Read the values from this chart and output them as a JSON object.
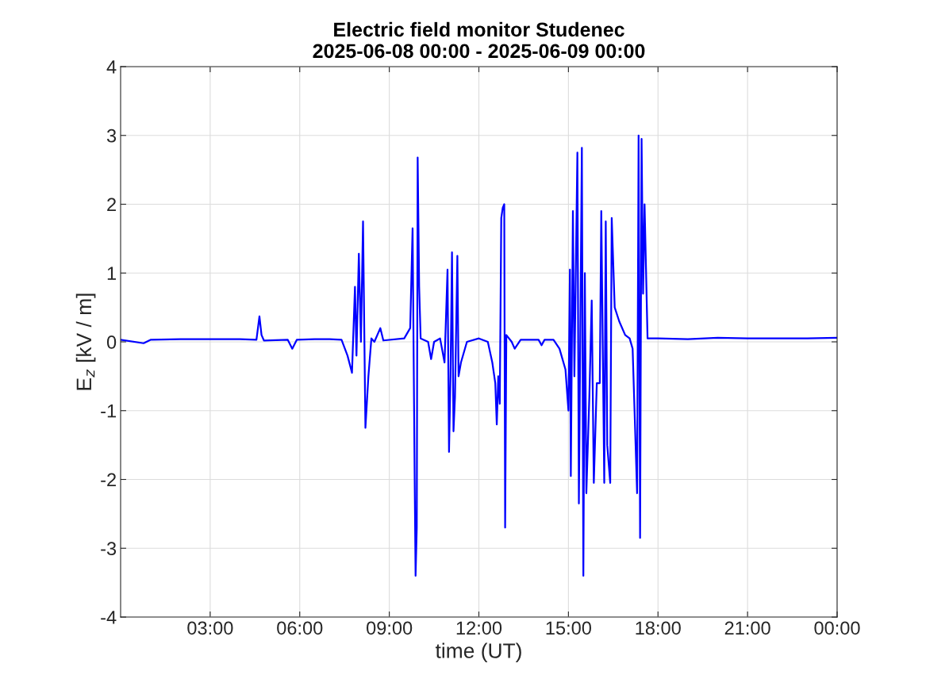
{
  "chart_data": {
    "type": "line",
    "title": "Electric field monitor Studenec\n2025-06-08 00:00 - 2025-06-09 00:00",
    "xlabel": "time (UT)",
    "ylabel": "E$_{z}$ [kV / m]",
    "x": [
      0,
      0.77,
      1.0,
      2.0,
      3.0,
      4.0,
      4.55,
      4.65,
      4.72,
      4.8,
      5.6,
      5.75,
      5.9,
      6.5,
      7.0,
      7.4,
      7.6,
      7.75,
      7.85,
      7.9,
      7.98,
      8.05,
      8.12,
      8.2,
      8.3,
      8.4,
      8.5,
      8.7,
      8.8,
      9.5,
      9.7,
      9.78,
      9.85,
      9.88,
      9.92,
      9.95,
      10.0,
      10.05,
      10.3,
      10.4,
      10.5,
      10.7,
      10.85,
      10.95,
      11.0,
      11.05,
      11.1,
      11.15,
      11.2,
      11.28,
      11.32,
      11.4,
      11.6,
      12.0,
      12.3,
      12.45,
      12.55,
      12.6,
      12.65,
      12.7,
      12.75,
      12.8,
      12.85,
      12.88,
      12.92,
      13.1,
      13.2,
      13.4,
      14.0,
      14.1,
      14.2,
      14.5,
      14.7,
      14.9,
      15.0,
      15.05,
      15.08,
      15.15,
      15.2,
      15.3,
      15.35,
      15.45,
      15.5,
      15.55,
      15.6,
      15.7,
      15.78,
      15.85,
      15.95,
      16.05,
      16.1,
      16.2,
      16.25,
      16.3,
      16.4,
      16.45,
      16.55,
      16.7,
      16.9,
      17.05,
      17.15,
      17.25,
      17.3,
      17.35,
      17.4,
      17.45,
      17.5,
      17.55,
      17.65,
      18.0,
      19.0,
      20.0,
      21.0,
      22.0,
      23.0,
      24.0
    ],
    "series": [
      {
        "color": "#0000ff",
        "values": [
          0.03,
          -0.02,
          0.03,
          0.04,
          0.04,
          0.04,
          0.03,
          0.37,
          0.1,
          0.02,
          0.03,
          -0.1,
          0.03,
          0.04,
          0.04,
          0.03,
          -0.2,
          -0.45,
          0.8,
          -0.2,
          1.28,
          0.0,
          1.75,
          -1.25,
          -0.5,
          0.05,
          0.0,
          0.2,
          0.02,
          0.05,
          0.2,
          1.65,
          -2.0,
          -3.4,
          -2.7,
          2.68,
          0.8,
          0.05,
          0.0,
          -0.25,
          0.0,
          0.05,
          -0.3,
          1.05,
          -1.6,
          -0.5,
          1.3,
          -1.3,
          -0.8,
          1.25,
          -0.5,
          -0.3,
          0.0,
          0.05,
          0.0,
          -0.3,
          -0.6,
          -1.2,
          -0.5,
          -0.9,
          1.8,
          1.95,
          2.0,
          -2.7,
          0.1,
          0.0,
          -0.1,
          0.03,
          0.03,
          -0.05,
          0.03,
          0.03,
          -0.1,
          -0.4,
          -1.0,
          1.05,
          -1.95,
          1.9,
          -0.5,
          2.75,
          -2.35,
          2.82,
          -3.4,
          1.0,
          -2.2,
          -0.8,
          0.6,
          -2.05,
          -0.6,
          -0.6,
          1.9,
          -2.05,
          1.75,
          -1.5,
          -2.05,
          1.8,
          0.5,
          0.3,
          0.1,
          0.05,
          -0.1,
          -1.5,
          -2.2,
          3.0,
          -2.85,
          2.95,
          0.7,
          2.0,
          0.05,
          0.05,
          0.04,
          0.06,
          0.05,
          0.05,
          0.05,
          0.06
        ]
      }
    ],
    "xlim": [
      0,
      24
    ],
    "xticks": [
      {
        "value": 3,
        "label": "03:00"
      },
      {
        "value": 6,
        "label": "06:00"
      },
      {
        "value": 9,
        "label": "09:00"
      },
      {
        "value": 12,
        "label": "12:00"
      },
      {
        "value": 15,
        "label": "15:00"
      },
      {
        "value": 18,
        "label": "18:00"
      },
      {
        "value": 21,
        "label": "21:00"
      },
      {
        "value": 24,
        "label": "00:00"
      }
    ],
    "ylim": [
      -4,
      4
    ],
    "yticks": [
      -4,
      -3,
      -2,
      -1,
      0,
      1,
      2,
      3,
      4
    ],
    "grid": true
  }
}
